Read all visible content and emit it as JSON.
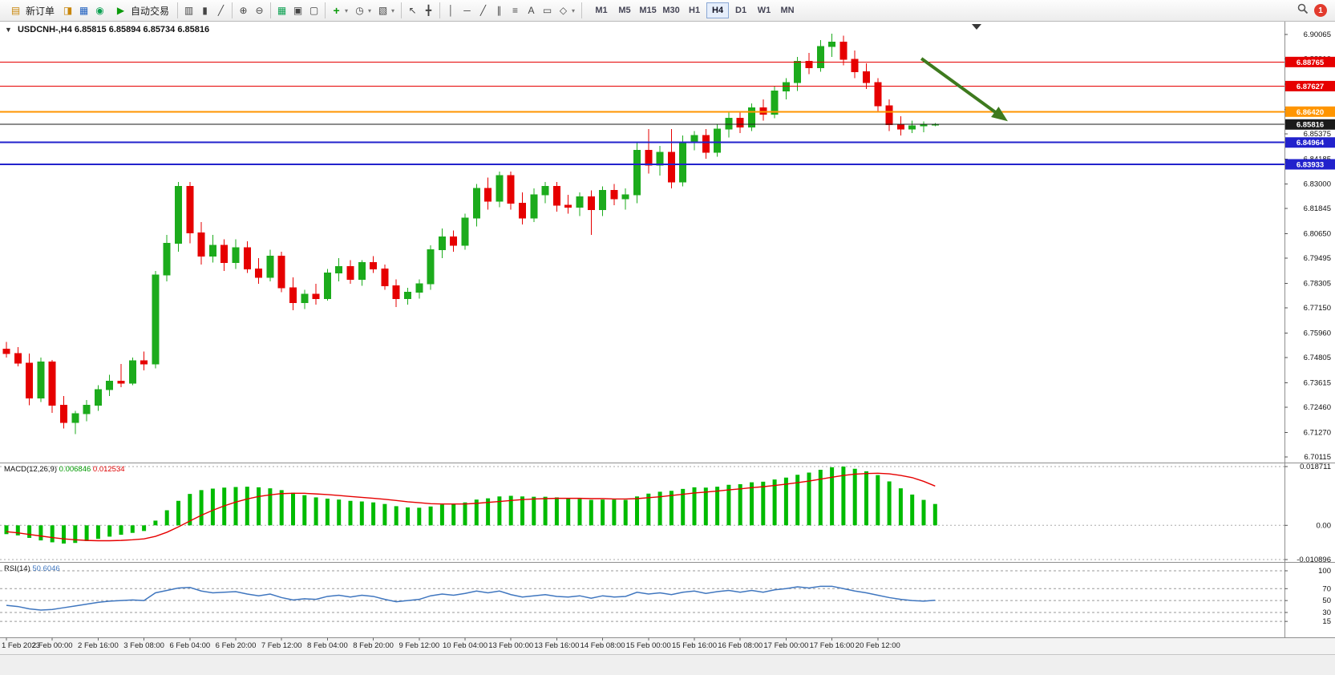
{
  "toolbar": {
    "new_order_label": "新订单",
    "autotrading_label": "自动交易",
    "text_tool_label": "A",
    "timeframes": [
      "M1",
      "M5",
      "M15",
      "M30",
      "H1",
      "H4",
      "D1",
      "W1",
      "MN"
    ],
    "active_timeframe": "H4",
    "notification_count": "1"
  },
  "icons": {
    "new_order": "▤",
    "market_watch": "◨",
    "data_window": "▦",
    "navigator": "◉",
    "autotrading": "▶",
    "bar_chart": "▥",
    "candle_chart": "▮",
    "line_chart": "╱",
    "zoom_in": "⊕",
    "zoom_out": "⊖",
    "new_chart": "▦",
    "cascade": "▣",
    "tile": "▢",
    "indicators": "+",
    "periods": "◷",
    "templates": "▧",
    "cursor": "↖",
    "crosshair": "╋",
    "vline": "│",
    "hline": "─",
    "trendline": "╱",
    "channel": "∥",
    "fibonacci": "≡",
    "label_tool": "▭",
    "shapes": "◇",
    "dropdown": "▾",
    "oneclick": "▼",
    "shift_marker": "▼"
  },
  "chart_data": {
    "type": "candlestick",
    "title": "USDCNH-,H4",
    "ohlc_text": "6.85815 6.85894 6.85734 6.85816",
    "current": {
      "open": "6.85815",
      "high": "6.85894",
      "low": "6.85734",
      "close": "6.85816"
    },
    "y_axis": {
      "min": 6.70115,
      "max": 6.90065,
      "ticks": [
        6.90065,
        6.8891,
        6.87715,
        6.8653,
        6.85375,
        6.84185,
        6.83,
        6.81845,
        6.8065,
        6.79495,
        6.78305,
        6.7715,
        6.7596,
        6.74805,
        6.73615,
        6.7246,
        6.7127,
        6.70115
      ]
    },
    "x_labels": [
      "1 Feb 2023",
      "2 Feb 00:00",
      "2 Feb 16:00",
      "3 Feb 08:00",
      "6 Feb 04:00",
      "6 Feb 20:00",
      "7 Feb 12:00",
      "8 Feb 04:00",
      "8 Feb 20:00",
      "9 Feb 12:00",
      "10 Feb 04:00",
      "13 Feb 00:00",
      "13 Feb 16:00",
      "14 Feb 08:00",
      "15 Feb 00:00",
      "15 Feb 16:00",
      "16 Feb 08:00",
      "17 Feb 00:00",
      "17 Feb 16:00",
      "20 Feb 12:00"
    ],
    "bars_per_label": 4,
    "colors": {
      "up": "#1cab1c",
      "down": "#e60000",
      "macd_hist": "#00bb00",
      "macd_signal": "#e60000",
      "rsi": "#3f76bf",
      "arrow": "#3e7a1e",
      "line_red": "#e60000",
      "line_orange": "#ff9500",
      "line_blue": "#2222cc",
      "price_black": "#1a1a1a"
    },
    "hlines": [
      {
        "price": 6.88765,
        "label": "6.88765",
        "color": "#e60000",
        "width": 1
      },
      {
        "price": 6.87627,
        "label": "6.87627",
        "color": "#e60000",
        "width": 1
      },
      {
        "price": 6.8642,
        "label": "6.86420",
        "color": "#ff9500",
        "width": 2
      },
      {
        "price": 6.84964,
        "label": "6.84964",
        "color": "#2222cc",
        "width": 2
      },
      {
        "price": 6.83933,
        "label": "6.83933",
        "color": "#2222cc",
        "width": 2
      }
    ],
    "price_line": {
      "price": 6.85816,
      "label": "6.85816",
      "color": "#1a1a1a",
      "width": 1
    },
    "arrow": {
      "from": {
        "bar": 79.8,
        "price": 6.8893
      },
      "to": {
        "bar": 87,
        "price": 6.861
      }
    },
    "candles": [
      [
        6.752,
        6.7555,
        6.748,
        6.75
      ],
      [
        6.75,
        6.753,
        6.744,
        6.7455
      ],
      [
        6.7455,
        6.75,
        6.7255,
        6.729
      ],
      [
        6.729,
        6.748,
        6.727,
        6.746
      ],
      [
        6.746,
        6.747,
        6.722,
        6.7255
      ],
      [
        6.7255,
        6.73,
        6.7145,
        6.7175
      ],
      [
        6.7175,
        6.723,
        6.712,
        6.7215
      ],
      [
        6.7215,
        6.728,
        6.718,
        6.7255
      ],
      [
        6.7255,
        6.735,
        6.723,
        6.733
      ],
      [
        6.733,
        6.74,
        6.73,
        6.737
      ],
      [
        6.737,
        6.745,
        6.734,
        6.736
      ],
      [
        6.736,
        6.748,
        6.735,
        6.7465
      ],
      [
        6.7465,
        6.751,
        6.742,
        6.745
      ],
      [
        6.745,
        6.789,
        6.743,
        6.787
      ],
      [
        6.787,
        6.806,
        6.784,
        6.802
      ],
      [
        6.802,
        6.831,
        6.798,
        6.829
      ],
      [
        6.829,
        6.831,
        6.802,
        6.807
      ],
      [
        6.807,
        6.812,
        6.792,
        6.796
      ],
      [
        6.796,
        6.806,
        6.793,
        6.801
      ],
      [
        6.801,
        6.804,
        6.789,
        6.793
      ],
      [
        6.793,
        6.804,
        6.79,
        6.8
      ],
      [
        6.8,
        6.803,
        6.788,
        6.79
      ],
      [
        6.79,
        6.795,
        6.783,
        6.786
      ],
      [
        6.786,
        6.799,
        6.784,
        6.796
      ],
      [
        6.796,
        6.798,
        6.779,
        6.781
      ],
      [
        6.781,
        6.786,
        6.7705,
        6.774
      ],
      [
        6.774,
        6.78,
        6.771,
        6.778
      ],
      [
        6.778,
        6.783,
        6.773,
        6.776
      ],
      [
        6.776,
        6.79,
        6.775,
        6.788
      ],
      [
        6.788,
        6.795,
        6.784,
        6.791
      ],
      [
        6.791,
        6.794,
        6.783,
        6.785
      ],
      [
        6.785,
        6.794,
        6.782,
        6.793
      ],
      [
        6.793,
        6.796,
        6.788,
        6.79
      ],
      [
        6.79,
        6.792,
        6.78,
        6.782
      ],
      [
        6.782,
        6.785,
        6.772,
        6.776
      ],
      [
        6.776,
        6.781,
        6.773,
        6.779
      ],
      [
        6.779,
        6.785,
        6.776,
        6.783
      ],
      [
        6.783,
        6.801,
        6.78,
        6.799
      ],
      [
        6.799,
        6.809,
        6.795,
        6.805
      ],
      [
        6.805,
        6.808,
        6.798,
        6.801
      ],
      [
        6.801,
        6.816,
        6.799,
        6.814
      ],
      [
        6.814,
        6.83,
        6.81,
        6.828
      ],
      [
        6.828,
        6.833,
        6.818,
        6.822
      ],
      [
        6.822,
        6.836,
        6.819,
        6.834
      ],
      [
        6.834,
        6.836,
        6.818,
        6.821
      ],
      [
        6.821,
        6.826,
        6.811,
        6.814
      ],
      [
        6.814,
        6.828,
        6.812,
        6.825
      ],
      [
        6.825,
        6.831,
        6.821,
        6.829
      ],
      [
        6.829,
        6.831,
        6.817,
        6.82
      ],
      [
        6.82,
        6.825,
        6.816,
        6.819
      ],
      [
        6.819,
        6.826,
        6.815,
        6.824
      ],
      [
        6.824,
        6.827,
        6.806,
        6.818
      ],
      [
        6.818,
        6.829,
        6.815,
        6.827
      ],
      [
        6.827,
        6.83,
        6.82,
        6.823
      ],
      [
        6.823,
        6.828,
        6.818,
        6.825
      ],
      [
        6.825,
        6.85,
        6.821,
        6.846
      ],
      [
        6.846,
        6.856,
        6.835,
        6.839
      ],
      [
        6.839,
        6.848,
        6.834,
        6.845
      ],
      [
        6.845,
        6.856,
        6.828,
        6.831
      ],
      [
        6.831,
        6.853,
        6.829,
        6.85
      ],
      [
        6.85,
        6.855,
        6.846,
        6.853
      ],
      [
        6.853,
        6.856,
        6.842,
        6.845
      ],
      [
        6.845,
        6.858,
        6.843,
        6.856
      ],
      [
        6.856,
        6.864,
        6.852,
        6.861
      ],
      [
        6.861,
        6.864,
        6.854,
        6.857
      ],
      [
        6.857,
        6.868,
        6.855,
        6.866
      ],
      [
        6.866,
        6.87,
        6.86,
        6.863
      ],
      [
        6.863,
        6.876,
        6.861,
        6.874
      ],
      [
        6.874,
        6.88,
        6.87,
        6.878
      ],
      [
        6.878,
        6.89,
        6.874,
        6.888
      ],
      [
        6.888,
        6.892,
        6.882,
        6.885
      ],
      [
        6.885,
        6.898,
        6.883,
        6.895
      ],
      [
        6.895,
        6.901,
        6.89,
        6.897
      ],
      [
        6.897,
        6.9,
        6.886,
        6.889
      ],
      [
        6.889,
        6.893,
        6.88,
        6.883
      ],
      [
        6.883,
        6.887,
        6.875,
        6.878
      ],
      [
        6.878,
        6.88,
        6.864,
        6.867
      ],
      [
        6.867,
        6.87,
        6.855,
        6.858
      ],
      [
        6.858,
        6.862,
        6.853,
        6.856
      ],
      [
        6.856,
        6.86,
        6.854,
        6.8575
      ],
      [
        6.8575,
        6.8595,
        6.8545,
        6.8581
      ],
      [
        6.8581,
        6.8589,
        6.8573,
        6.8582
      ]
    ],
    "indicators": {
      "macd": {
        "label": "MACD(12,26,9)",
        "value_main": "0.006846",
        "value_signal": "0.012534",
        "max": 0.018711,
        "min": -0.010896,
        "axis_levels": [
          0.018711,
          0,
          -0.010896
        ],
        "axis_labels": [
          "0.018711",
          "0.00",
          "-0.010896"
        ],
        "histogram": [
          -0.0028,
          -0.0032,
          -0.004,
          -0.0048,
          -0.0054,
          -0.0058,
          -0.0056,
          -0.005,
          -0.0043,
          -0.0036,
          -0.003,
          -0.0024,
          -0.0018,
          0.0015,
          0.0048,
          0.0078,
          0.01,
          0.0112,
          0.0117,
          0.012,
          0.0122,
          0.0123,
          0.0121,
          0.0118,
          0.0112,
          0.0104,
          0.0096,
          0.0089,
          0.0085,
          0.0082,
          0.0078,
          0.0076,
          0.0073,
          0.0068,
          0.0061,
          0.0057,
          0.0056,
          0.006,
          0.0066,
          0.0068,
          0.0073,
          0.0082,
          0.0086,
          0.0092,
          0.0094,
          0.0092,
          0.0091,
          0.0091,
          0.0089,
          0.0086,
          0.0084,
          0.0081,
          0.0082,
          0.0082,
          0.0081,
          0.0092,
          0.0101,
          0.0107,
          0.011,
          0.0116,
          0.0121,
          0.012,
          0.0123,
          0.0129,
          0.0131,
          0.0137,
          0.0139,
          0.0146,
          0.0152,
          0.0161,
          0.0168,
          0.0177,
          0.0185,
          0.0187,
          0.018,
          0.0172,
          0.016,
          0.014,
          0.0118,
          0.0098,
          0.0081,
          0.0068
        ],
        "signal": [
          -0.002,
          -0.0024,
          -0.0029,
          -0.0034,
          -0.0039,
          -0.0043,
          -0.0046,
          -0.0048,
          -0.0049,
          -0.0049,
          -0.0048,
          -0.0046,
          -0.0043,
          -0.0035,
          -0.0022,
          -0.0005,
          0.0014,
          0.0032,
          0.0048,
          0.0062,
          0.0074,
          0.0084,
          0.0092,
          0.0097,
          0.0101,
          0.0102,
          0.0102,
          0.01,
          0.0098,
          0.0095,
          0.0092,
          0.0089,
          0.0086,
          0.0083,
          0.0079,
          0.0075,
          0.0072,
          0.0069,
          0.0068,
          0.0068,
          0.0068,
          0.007,
          0.0073,
          0.0076,
          0.0079,
          0.0082,
          0.0084,
          0.0085,
          0.0086,
          0.0086,
          0.0086,
          0.0085,
          0.0085,
          0.0084,
          0.0084,
          0.0085,
          0.0088,
          0.0091,
          0.0095,
          0.0099,
          0.0103,
          0.0106,
          0.0109,
          0.0113,
          0.0116,
          0.012,
          0.0123,
          0.0127,
          0.0131,
          0.0136,
          0.0141,
          0.0147,
          0.0153,
          0.0159,
          0.0163,
          0.0165,
          0.0166,
          0.0164,
          0.0159,
          0.0152,
          0.014,
          0.0125
        ]
      },
      "rsi": {
        "label": "RSI(14)",
        "value": "50.6046",
        "levels": [
          100,
          70,
          50,
          30,
          15
        ],
        "axis_labels": [
          "100",
          "70",
          "50",
          "30",
          "15"
        ],
        "series": [
          42,
          40,
          36,
          34,
          35,
          38,
          41,
          44,
          47,
          49,
          50,
          51,
          50,
          63,
          67,
          71,
          72,
          66,
          63,
          64,
          65,
          61,
          58,
          61,
          55,
          51,
          53,
          52,
          57,
          59,
          56,
          59,
          57,
          52,
          48,
          50,
          52,
          58,
          61,
          59,
          62,
          66,
          63,
          66,
          60,
          56,
          58,
          60,
          57,
          56,
          58,
          54,
          58,
          56,
          57,
          64,
          61,
          63,
          60,
          64,
          66,
          62,
          65,
          67,
          64,
          67,
          64,
          68,
          70,
          73,
          71,
          74,
          74,
          70,
          66,
          63,
          59,
          55,
          52,
          50,
          49,
          50.6
        ]
      }
    }
  }
}
